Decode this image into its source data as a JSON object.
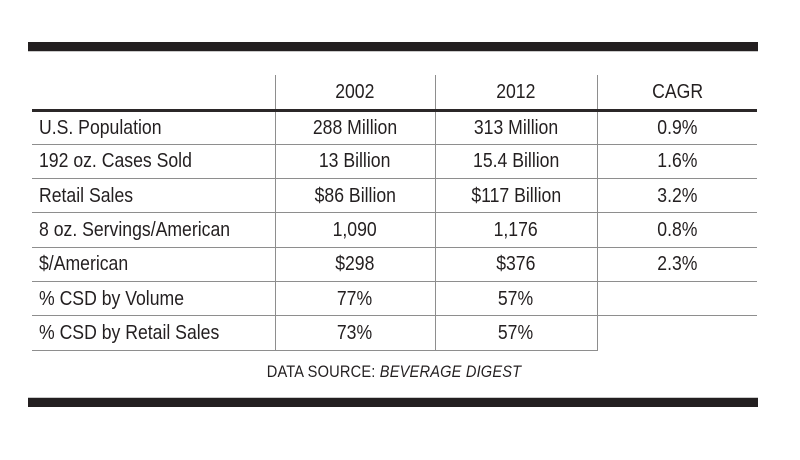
{
  "chart_data": {
    "type": "table",
    "columns": [
      "",
      "2002",
      "2012",
      "CAGR"
    ],
    "rows": [
      [
        "U.S. Population",
        "288 Million",
        "313 Million",
        "0.9%"
      ],
      [
        "192 oz. Cases Sold",
        "13 Billion",
        "15.4 Billion",
        "1.6%"
      ],
      [
        "Retail Sales",
        "$86 Billion",
        "$117 Billion",
        "3.2%"
      ],
      [
        "8 oz. Servings/American",
        "1,090",
        "1,176",
        "0.8%"
      ],
      [
        "$/American",
        "$298",
        "$376",
        "2.3%"
      ],
      [
        "% CSD by Volume",
        "77%",
        "57%",
        ""
      ],
      [
        "% CSD by Retail Sales",
        "73%",
        "57%",
        ""
      ]
    ],
    "caption": "DATA SOURCE: BEVERAGE DIGEST",
    "layout": "ruled table between two heavy horizontal bars, values center-aligned, labels left-aligned"
  },
  "footer": {
    "label": "DATA SOURCE:",
    "source": "BEVERAGE DIGEST"
  },
  "colors": {
    "background": "#ffffff",
    "text": "#231f20",
    "heavy_rule": "#231f20",
    "grid_line": "#8e8e8e"
  }
}
